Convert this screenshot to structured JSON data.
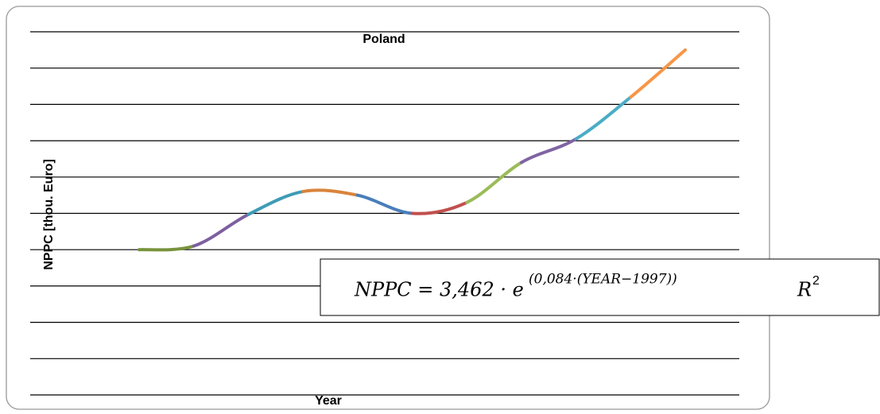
{
  "chart_data": {
    "type": "line",
    "title": "Poland",
    "y_label": "NPPC [thou. Euro]",
    "x_label": "Year",
    "categories": [
      null,
      null,
      null,
      null,
      null,
      null,
      null,
      null,
      null,
      null,
      null
    ],
    "values": [
      4.0,
      4.1,
      4.97,
      5.6,
      5.5,
      5.0,
      5.3,
      6.4,
      7.05,
      8.2,
      9.5
    ],
    "segment_colors": [
      "#77933c",
      "#7d5fa0",
      "#3f9bb5",
      "#d9843b",
      "#4a7ebb",
      "#c0504d",
      "#9bbb59",
      "#8064a2",
      "#4bacc6",
      "#f79646"
    ],
    "ylim": [
      0,
      10
    ],
    "yticks": [
      0,
      1,
      2,
      3,
      4,
      5,
      6,
      7,
      8,
      9,
      10
    ],
    "grid": true,
    "annotation": {
      "main": "NPPC = 3,462 · e",
      "exponent": "(0,084·(YEAR−1997))",
      "r": "R",
      "r_exp": "2"
    }
  }
}
